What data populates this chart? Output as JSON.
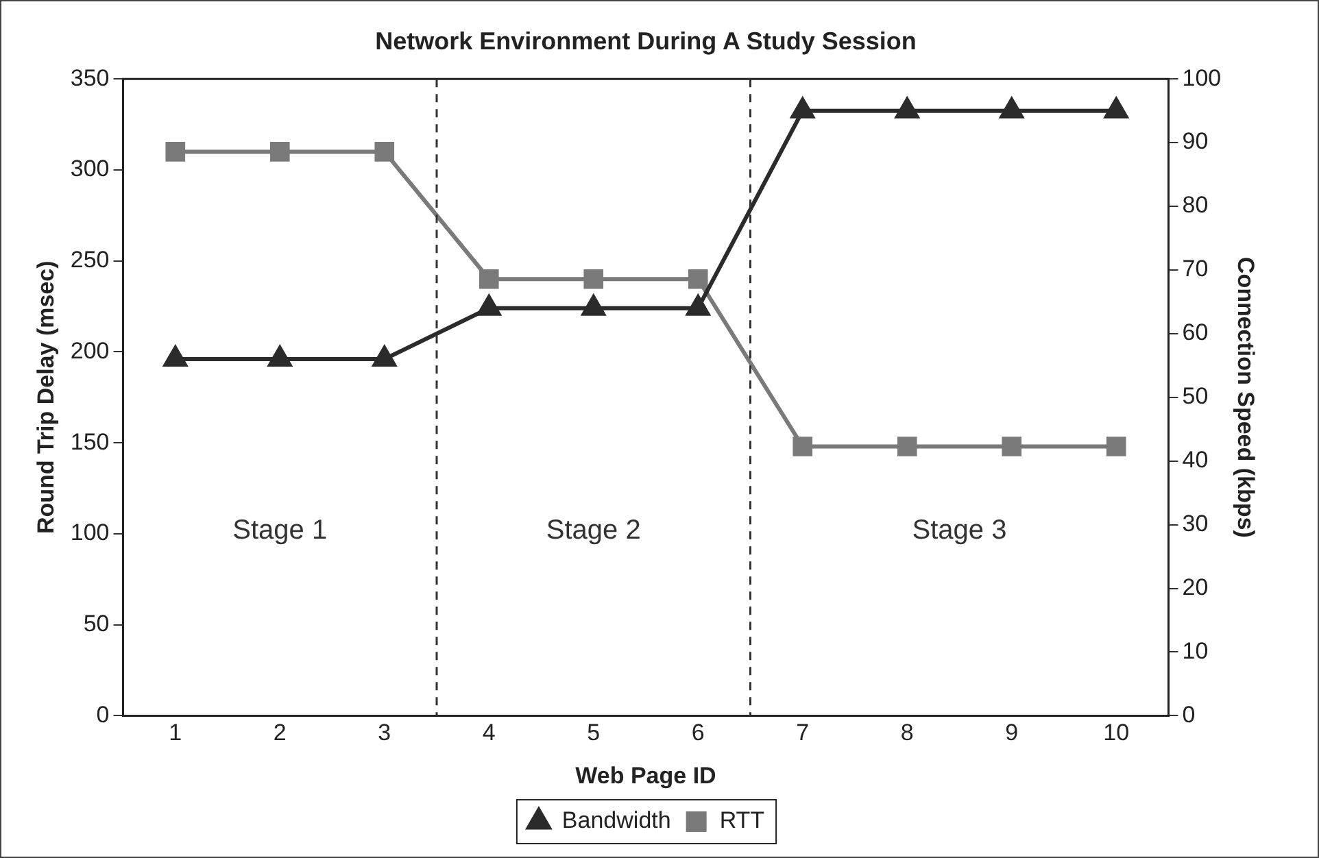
{
  "chart_data": {
    "type": "line",
    "title": "Network Environment During A Study Session",
    "xlabel": "Web Page ID",
    "ylabel": "Round Trip Delay (msec)",
    "y2label": "Connection Speed (kbps)",
    "x": [
      1,
      2,
      3,
      4,
      5,
      6,
      7,
      8,
      9,
      10
    ],
    "xlim": [
      0.5,
      10.5
    ],
    "xticks": [
      1,
      2,
      3,
      4,
      5,
      6,
      7,
      8,
      9,
      10
    ],
    "ylim": [
      0,
      350
    ],
    "yticks": [
      0,
      50,
      100,
      150,
      200,
      250,
      300,
      350
    ],
    "y2lim": [
      0,
      100
    ],
    "y2ticks": [
      0,
      10,
      20,
      30,
      40,
      50,
      60,
      70,
      80,
      90,
      100
    ],
    "series": [
      {
        "name": "Bandwidth",
        "color": "#2b2b2b",
        "axis": "y2",
        "marker": "triangle",
        "values": [
          56,
          56,
          56,
          64,
          64,
          64,
          95,
          95,
          95,
          95
        ]
      },
      {
        "name": "RTT",
        "color": "#7a7a7a",
        "axis": "y",
        "marker": "square",
        "values": [
          310,
          310,
          310,
          240,
          240,
          240,
          148,
          148,
          148,
          148
        ]
      }
    ],
    "ref_lines": [
      {
        "axis": "x",
        "value": 3.5,
        "line_style": "dashed",
        "color": "#333333"
      },
      {
        "axis": "x",
        "value": 6.5,
        "line_style": "dashed",
        "color": "#333333"
      }
    ],
    "annotations": [
      "Stage 1",
      "Stage 2",
      "Stage 3"
    ],
    "grid": false,
    "legend": "bottom",
    "line_style": "solid"
  }
}
